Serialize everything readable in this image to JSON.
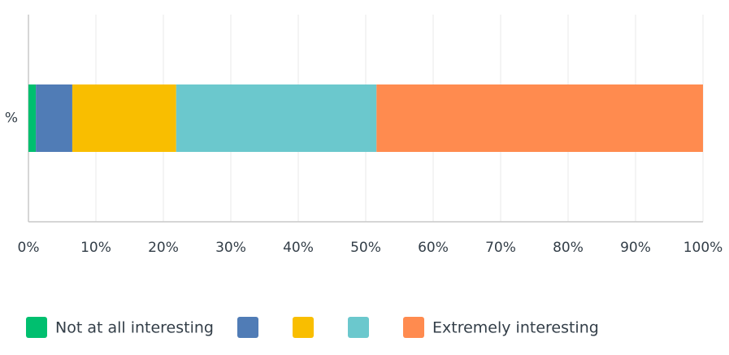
{
  "chart_data": {
    "type": "stacked-bar",
    "orientation": "horizontal",
    "categories": [
      "%"
    ],
    "series": [
      {
        "name": "Not at all interesting",
        "color": "#00bf6f",
        "values": [
          1.1
        ]
      },
      {
        "name": null,
        "color": "#507cb6",
        "values": [
          5.4
        ]
      },
      {
        "name": null,
        "color": "#f9be00",
        "values": [
          15.4
        ]
      },
      {
        "name": null,
        "color": "#6bc8cd",
        "values": [
          29.7
        ]
      },
      {
        "name": "Extremely interesting",
        "color": "#ff8b4f",
        "values": [
          48.4
        ]
      }
    ],
    "xlim": [
      0,
      100
    ],
    "xticks": [
      {
        "value": 0,
        "label": "0%"
      },
      {
        "value": 10,
        "label": "10%"
      },
      {
        "value": 20,
        "label": "20%"
      },
      {
        "value": 30,
        "label": "30%"
      },
      {
        "value": 40,
        "label": "40%"
      },
      {
        "value": 50,
        "label": "50%"
      },
      {
        "value": 60,
        "label": "60%"
      },
      {
        "value": 70,
        "label": "70%"
      },
      {
        "value": 80,
        "label": "80%"
      },
      {
        "value": 90,
        "label": "90%"
      },
      {
        "value": 100,
        "label": "100%"
      }
    ],
    "grid": true,
    "legend": "bottom"
  }
}
